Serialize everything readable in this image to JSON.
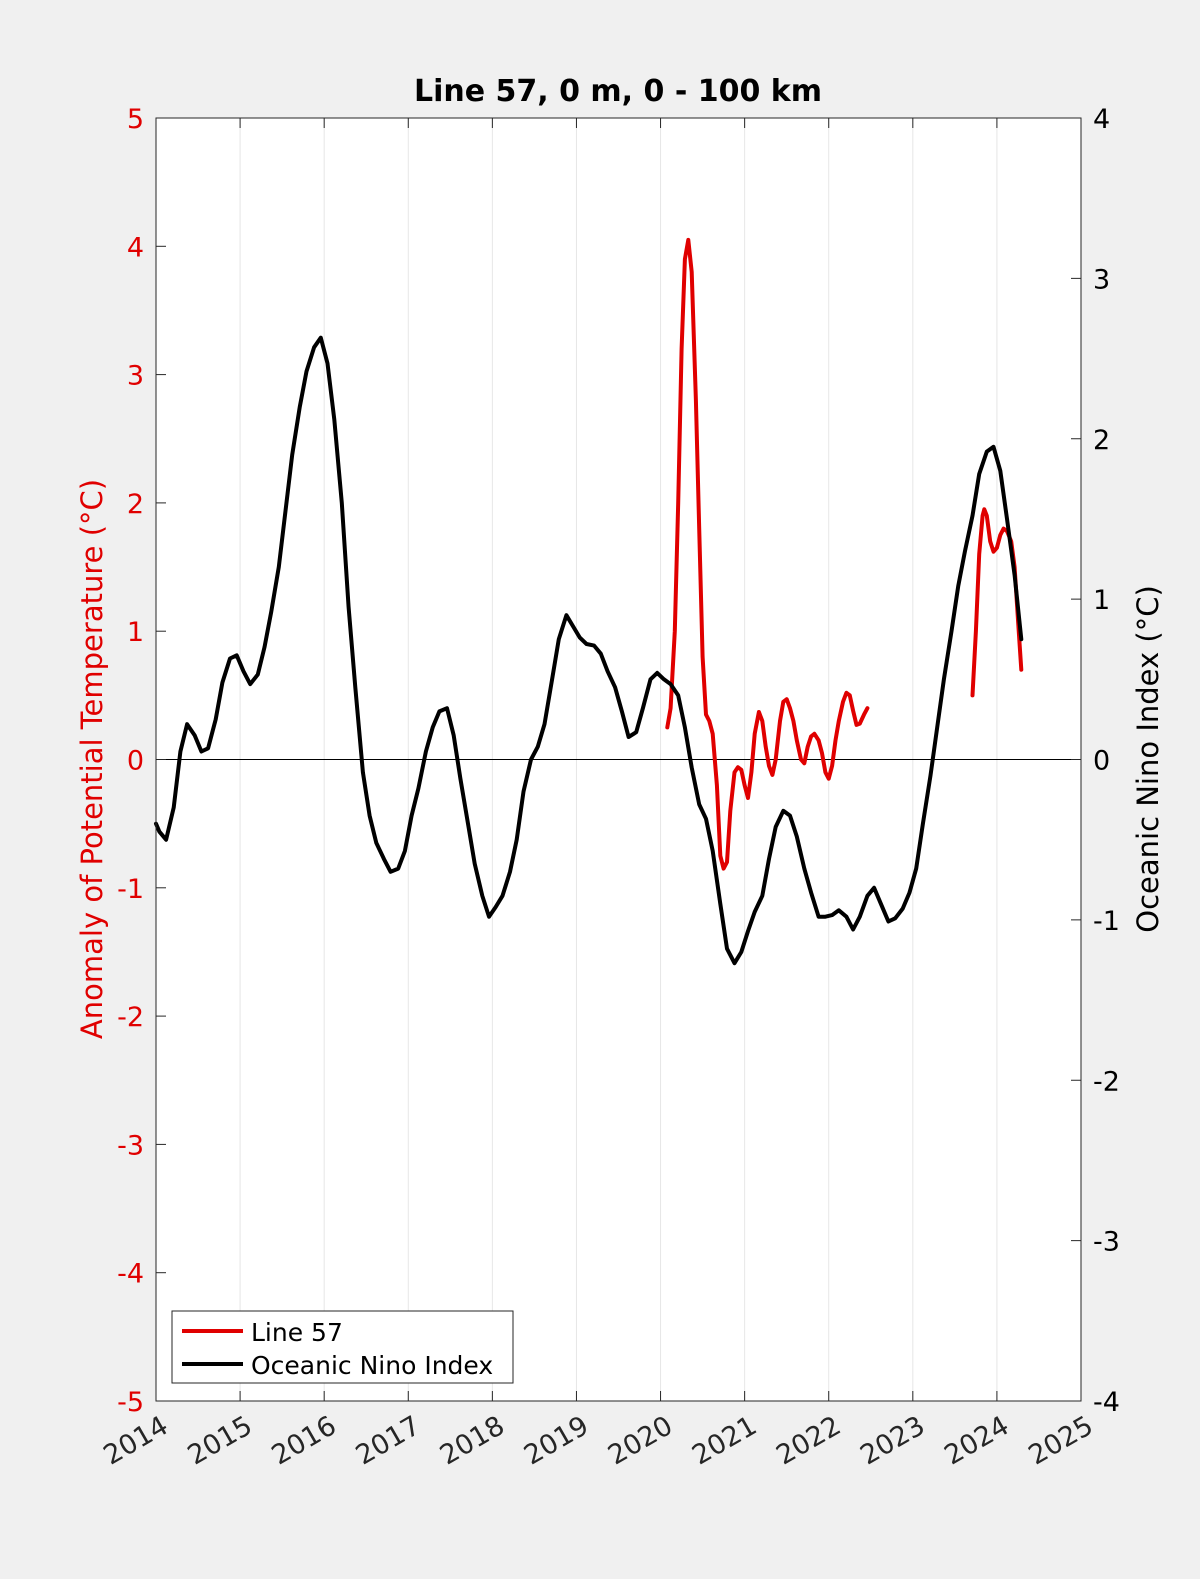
{
  "chart_data": {
    "type": "line",
    "title": "Line 57, 0 m, 0 - 100 km",
    "xlabel": "",
    "ylabel_left": "Anomaly of Potential Temperature (°C)",
    "ylabel_right": "Oceanic Nino Index (°C)",
    "xlim": [
      2014,
      2025
    ],
    "ylim_left": [
      -5,
      5
    ],
    "ylim_right": [
      -4,
      4
    ],
    "x_ticks": [
      "2014",
      "2015",
      "2016",
      "2017",
      "2018",
      "2019",
      "2020",
      "2021",
      "2022",
      "2023",
      "2024",
      "2025"
    ],
    "y_left_ticks": [
      "5",
      "4",
      "3",
      "2",
      "1",
      "0",
      "-1",
      "-2",
      "-3",
      "-4",
      "-5"
    ],
    "y_right_ticks": [
      "4",
      "3",
      "2",
      "1",
      "0",
      "-1",
      "-2",
      "-3",
      "-4"
    ],
    "grid": "vertical",
    "legend_position": "bottom-left",
    "colors": {
      "line57": "#e00000",
      "oni": "#000000",
      "left_axis": "#e00000",
      "right_axis": "#000000"
    },
    "series": [
      {
        "name": "Line 57",
        "axis": "left",
        "color": "#e00000",
        "segments": [
          [
            [
              2020.08,
              0.25
            ],
            [
              2020.12,
              0.4
            ],
            [
              2020.17,
              1.0
            ],
            [
              2020.21,
              2.0
            ],
            [
              2020.25,
              3.2
            ],
            [
              2020.29,
              3.9
            ],
            [
              2020.33,
              4.05
            ],
            [
              2020.37,
              3.8
            ],
            [
              2020.42,
              2.8
            ],
            [
              2020.46,
              1.8
            ],
            [
              2020.5,
              0.8
            ],
            [
              2020.54,
              0.35
            ],
            [
              2020.58,
              0.3
            ],
            [
              2020.62,
              0.2
            ],
            [
              2020.67,
              -0.2
            ],
            [
              2020.71,
              -0.75
            ],
            [
              2020.75,
              -0.85
            ],
            [
              2020.79,
              -0.8
            ],
            [
              2020.83,
              -0.4
            ],
            [
              2020.88,
              -0.1
            ],
            [
              2020.92,
              -0.06
            ],
            [
              2020.96,
              -0.08
            ],
            [
              2021.0,
              -0.2
            ],
            [
              2021.04,
              -0.3
            ],
            [
              2021.08,
              -0.1
            ],
            [
              2021.12,
              0.2
            ],
            [
              2021.17,
              0.37
            ],
            [
              2021.21,
              0.3
            ],
            [
              2021.25,
              0.1
            ],
            [
              2021.29,
              -0.05
            ],
            [
              2021.33,
              -0.12
            ],
            [
              2021.37,
              0.0
            ],
            [
              2021.42,
              0.3
            ],
            [
              2021.46,
              0.45
            ],
            [
              2021.5,
              0.47
            ],
            [
              2021.54,
              0.4
            ],
            [
              2021.58,
              0.3
            ],
            [
              2021.62,
              0.15
            ],
            [
              2021.67,
              0.0
            ],
            [
              2021.71,
              -0.03
            ],
            [
              2021.75,
              0.1
            ],
            [
              2021.79,
              0.18
            ],
            [
              2021.83,
              0.2
            ],
            [
              2021.88,
              0.15
            ],
            [
              2021.92,
              0.05
            ],
            [
              2021.96,
              -0.1
            ],
            [
              2022.0,
              -0.15
            ],
            [
              2022.04,
              -0.05
            ],
            [
              2022.08,
              0.15
            ],
            [
              2022.12,
              0.3
            ],
            [
              2022.17,
              0.45
            ],
            [
              2022.21,
              0.52
            ],
            [
              2022.25,
              0.5
            ],
            [
              2022.29,
              0.38
            ],
            [
              2022.33,
              0.27
            ],
            [
              2022.37,
              0.28
            ],
            [
              2022.42,
              0.35
            ],
            [
              2022.46,
              0.4
            ]
          ],
          [
            [
              2023.71,
              0.5
            ],
            [
              2023.75,
              1.0
            ],
            [
              2023.79,
              1.6
            ],
            [
              2023.83,
              1.9
            ],
            [
              2023.85,
              1.95
            ],
            [
              2023.88,
              1.9
            ],
            [
              2023.92,
              1.7
            ],
            [
              2023.96,
              1.62
            ],
            [
              2024.0,
              1.65
            ],
            [
              2024.04,
              1.75
            ],
            [
              2024.08,
              1.8
            ],
            [
              2024.12,
              1.78
            ],
            [
              2024.17,
              1.7
            ],
            [
              2024.21,
              1.5
            ],
            [
              2024.25,
              1.1
            ],
            [
              2024.29,
              0.7
            ]
          ]
        ]
      },
      {
        "name": "Oceanic Nino Index",
        "axis": "right",
        "color": "#000000",
        "segments": [
          [
            [
              2014.0,
              -0.4
            ],
            [
              2014.04,
              -0.45
            ],
            [
              2014.12,
              -0.5
            ],
            [
              2014.21,
              -0.3
            ],
            [
              2014.29,
              0.05
            ],
            [
              2014.37,
              0.22
            ],
            [
              2014.46,
              0.15
            ],
            [
              2014.54,
              0.05
            ],
            [
              2014.62,
              0.07
            ],
            [
              2014.71,
              0.25
            ],
            [
              2014.79,
              0.48
            ],
            [
              2014.88,
              0.63
            ],
            [
              2014.96,
              0.65
            ],
            [
              2015.04,
              0.55
            ],
            [
              2015.12,
              0.47
            ],
            [
              2015.21,
              0.53
            ],
            [
              2015.29,
              0.7
            ],
            [
              2015.37,
              0.92
            ],
            [
              2015.46,
              1.2
            ],
            [
              2015.54,
              1.55
            ],
            [
              2015.62,
              1.9
            ],
            [
              2015.71,
              2.2
            ],
            [
              2015.79,
              2.42
            ],
            [
              2015.88,
              2.57
            ],
            [
              2015.96,
              2.63
            ],
            [
              2016.04,
              2.47
            ],
            [
              2016.12,
              2.12
            ],
            [
              2016.21,
              1.6
            ],
            [
              2016.29,
              0.95
            ],
            [
              2016.37,
              0.45
            ],
            [
              2016.46,
              -0.08
            ],
            [
              2016.54,
              -0.35
            ],
            [
              2016.62,
              -0.52
            ],
            [
              2016.71,
              -0.62
            ],
            [
              2016.79,
              -0.7
            ],
            [
              2016.88,
              -0.68
            ],
            [
              2016.96,
              -0.57
            ],
            [
              2017.04,
              -0.35
            ],
            [
              2017.12,
              -0.18
            ],
            [
              2017.21,
              0.05
            ],
            [
              2017.29,
              0.2
            ],
            [
              2017.37,
              0.3
            ],
            [
              2017.46,
              0.32
            ],
            [
              2017.54,
              0.15
            ],
            [
              2017.62,
              -0.12
            ],
            [
              2017.71,
              -0.4
            ],
            [
              2017.79,
              -0.65
            ],
            [
              2017.88,
              -0.85
            ],
            [
              2017.96,
              -0.98
            ],
            [
              2018.04,
              -0.92
            ],
            [
              2018.12,
              -0.85
            ],
            [
              2018.21,
              -0.7
            ],
            [
              2018.29,
              -0.5
            ],
            [
              2018.37,
              -0.2
            ],
            [
              2018.46,
              0.0
            ],
            [
              2018.54,
              0.08
            ],
            [
              2018.62,
              0.22
            ],
            [
              2018.71,
              0.5
            ],
            [
              2018.79,
              0.75
            ],
            [
              2018.88,
              0.9
            ],
            [
              2018.96,
              0.83
            ],
            [
              2019.04,
              0.76
            ],
            [
              2019.12,
              0.72
            ],
            [
              2019.21,
              0.71
            ],
            [
              2019.29,
              0.66
            ],
            [
              2019.37,
              0.55
            ],
            [
              2019.46,
              0.45
            ],
            [
              2019.54,
              0.3
            ],
            [
              2019.62,
              0.14
            ],
            [
              2019.71,
              0.17
            ],
            [
              2019.79,
              0.32
            ],
            [
              2019.88,
              0.5
            ],
            [
              2019.96,
              0.54
            ],
            [
              2020.04,
              0.5
            ],
            [
              2020.12,
              0.47
            ],
            [
              2020.21,
              0.4
            ],
            [
              2020.29,
              0.2
            ],
            [
              2020.37,
              -0.05
            ],
            [
              2020.46,
              -0.28
            ],
            [
              2020.54,
              -0.37
            ],
            [
              2020.62,
              -0.57
            ],
            [
              2020.71,
              -0.9
            ],
            [
              2020.79,
              -1.18
            ],
            [
              2020.88,
              -1.27
            ],
            [
              2020.96,
              -1.2
            ],
            [
              2021.04,
              -1.07
            ],
            [
              2021.12,
              -0.95
            ],
            [
              2021.21,
              -0.85
            ],
            [
              2021.29,
              -0.62
            ],
            [
              2021.37,
              -0.42
            ],
            [
              2021.46,
              -0.32
            ],
            [
              2021.54,
              -0.35
            ],
            [
              2021.62,
              -0.48
            ],
            [
              2021.71,
              -0.68
            ],
            [
              2021.79,
              -0.83
            ],
            [
              2021.88,
              -0.98
            ],
            [
              2021.96,
              -0.98
            ],
            [
              2022.04,
              -0.97
            ],
            [
              2022.12,
              -0.94
            ],
            [
              2022.21,
              -0.98
            ],
            [
              2022.29,
              -1.06
            ],
            [
              2022.37,
              -0.98
            ],
            [
              2022.46,
              -0.85
            ],
            [
              2022.54,
              -0.8
            ],
            [
              2022.62,
              -0.9
            ],
            [
              2022.71,
              -1.01
            ],
            [
              2022.79,
              -0.99
            ],
            [
              2022.88,
              -0.93
            ],
            [
              2022.96,
              -0.83
            ],
            [
              2023.04,
              -0.68
            ],
            [
              2023.12,
              -0.4
            ],
            [
              2023.21,
              -0.1
            ],
            [
              2023.29,
              0.2
            ],
            [
              2023.37,
              0.5
            ],
            [
              2023.46,
              0.8
            ],
            [
              2023.54,
              1.08
            ],
            [
              2023.62,
              1.3
            ],
            [
              2023.71,
              1.52
            ],
            [
              2023.79,
              1.78
            ],
            [
              2023.88,
              1.92
            ],
            [
              2023.96,
              1.95
            ],
            [
              2024.04,
              1.8
            ],
            [
              2024.12,
              1.5
            ],
            [
              2024.21,
              1.15
            ],
            [
              2024.29,
              0.75
            ]
          ]
        ]
      }
    ]
  }
}
